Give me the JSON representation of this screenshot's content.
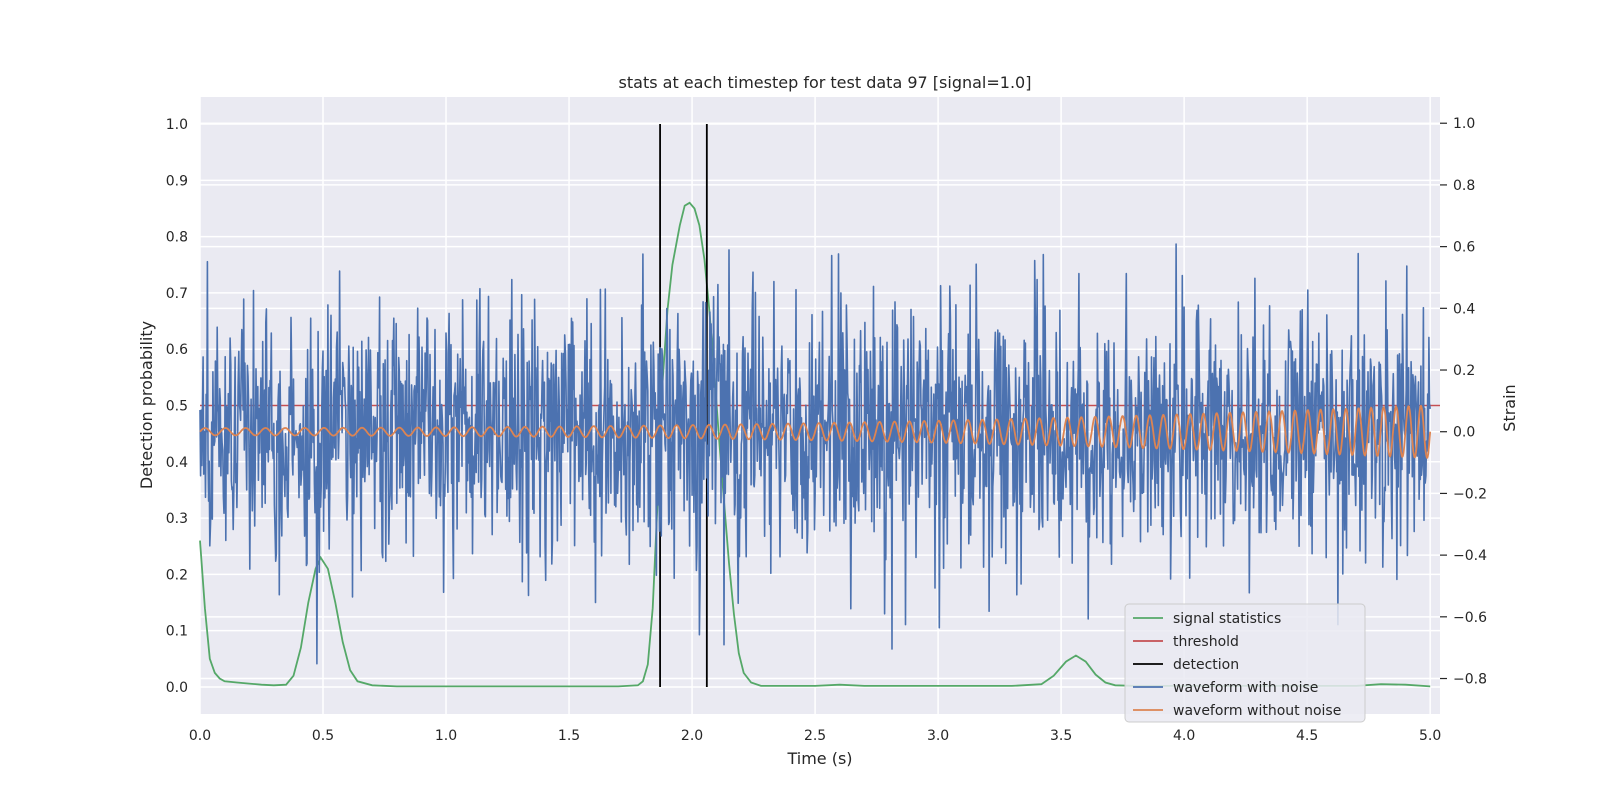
{
  "chart_data": {
    "type": "line",
    "title": "stats at each timestep for test data 97 [signal=1.0]",
    "xlabel": "Time (s)",
    "ylabel": "Detection probability",
    "y2label": "Strain",
    "xlim": [
      0.0,
      5.04
    ],
    "ylim": [
      -0.048,
      1.048
    ],
    "y2lim": [
      -0.915,
      1.085
    ],
    "xticks": [
      0.0,
      0.5,
      1.0,
      1.5,
      2.0,
      2.5,
      3.0,
      3.5,
      4.0,
      4.5,
      5.0
    ],
    "xtick_labels": [
      "0.0",
      "0.5",
      "1.0",
      "1.5",
      "2.0",
      "2.5",
      "3.0",
      "3.5",
      "4.0",
      "4.5",
      "5.0"
    ],
    "yticks": [
      0.0,
      0.1,
      0.2,
      0.3,
      0.4,
      0.5,
      0.6,
      0.7,
      0.8,
      0.9,
      1.0
    ],
    "ytick_labels": [
      "0.0",
      "0.1",
      "0.2",
      "0.3",
      "0.4",
      "0.5",
      "0.6",
      "0.7",
      "0.8",
      "0.9",
      "1.0"
    ],
    "y2ticks": [
      -0.8,
      -0.6,
      -0.4,
      -0.2,
      0.0,
      0.2,
      0.4,
      0.6,
      0.8,
      1.0
    ],
    "y2tick_labels": [
      "−0.8",
      "−0.6",
      "−0.4",
      "−0.2",
      "0.0",
      "0.2",
      "0.4",
      "0.6",
      "0.8",
      "1.0"
    ],
    "grid": true,
    "legend_position": "lower-right",
    "threshold": 0.5,
    "detections": [
      1.87,
      2.06
    ],
    "series": [
      {
        "name": "signal statistics",
        "color": "#55a868",
        "axis": "left",
        "x": [
          0.0,
          0.02,
          0.04,
          0.06,
          0.08,
          0.1,
          0.15,
          0.2,
          0.25,
          0.3,
          0.35,
          0.38,
          0.41,
          0.44,
          0.47,
          0.49,
          0.52,
          0.55,
          0.58,
          0.61,
          0.64,
          0.7,
          0.8,
          1.0,
          1.2,
          1.5,
          1.7,
          1.78,
          1.8,
          1.82,
          1.84,
          1.86,
          1.88,
          1.9,
          1.92,
          1.95,
          1.97,
          1.99,
          2.01,
          2.03,
          2.05,
          2.07,
          2.09,
          2.11,
          2.13,
          2.15,
          2.17,
          2.19,
          2.21,
          2.24,
          2.28,
          2.35,
          2.5,
          2.6,
          2.7,
          3.0,
          3.3,
          3.42,
          3.47,
          3.52,
          3.56,
          3.6,
          3.64,
          3.68,
          3.72,
          3.8,
          4.0,
          4.2,
          4.5,
          4.7,
          4.8,
          4.9,
          5.0
        ],
        "values": [
          0.26,
          0.14,
          0.05,
          0.025,
          0.015,
          0.01,
          0.008,
          0.006,
          0.004,
          0.003,
          0.004,
          0.02,
          0.07,
          0.15,
          0.21,
          0.23,
          0.21,
          0.15,
          0.08,
          0.03,
          0.01,
          0.003,
          0.001,
          0.001,
          0.001,
          0.001,
          0.001,
          0.003,
          0.01,
          0.04,
          0.14,
          0.33,
          0.54,
          0.67,
          0.75,
          0.82,
          0.855,
          0.86,
          0.85,
          0.82,
          0.76,
          0.67,
          0.56,
          0.44,
          0.33,
          0.22,
          0.13,
          0.06,
          0.025,
          0.008,
          0.002,
          0.002,
          0.002,
          0.004,
          0.002,
          0.002,
          0.002,
          0.005,
          0.02,
          0.045,
          0.056,
          0.045,
          0.022,
          0.008,
          0.003,
          0.002,
          0.002,
          0.002,
          0.002,
          0.002,
          0.005,
          0.004,
          0.001
        ]
      },
      {
        "name": "threshold",
        "color": "#c44e52",
        "axis": "left"
      },
      {
        "name": "detection",
        "color": "#000000",
        "axis": "left"
      },
      {
        "name": "waveform with noise",
        "color": "#4c72b0",
        "axis": "right",
        "sample_rate_hz": 400,
        "noise_std": 0.21
      },
      {
        "name": "waveform without noise",
        "color": "#dd8452",
        "axis": "right",
        "amplitude_start": 0.012,
        "amplitude_end": 0.085,
        "freq_start_hz": 12,
        "freq_end_hz": 20
      }
    ]
  }
}
